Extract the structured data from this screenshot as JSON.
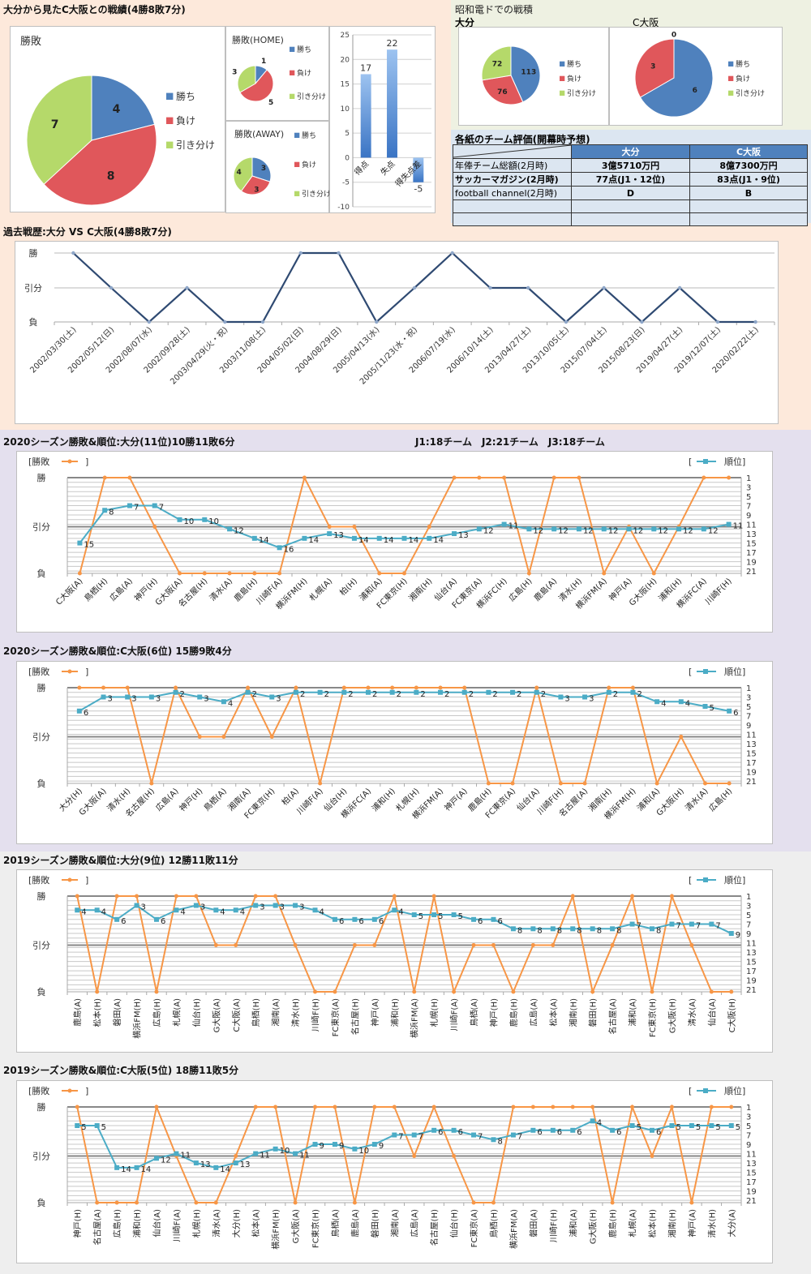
{
  "colors": {
    "win": "#4f81bd",
    "loss": "#e0575b",
    "draw": "#b5d96a",
    "result_line": "#f79646",
    "rank_line": "#4bacc6",
    "history_line": "#2f4a72",
    "bg_peach": "#fde9db",
    "bg_lavender": "#e4e0ee",
    "bg_gray": "#eeeeee",
    "bg_green": "#eef1e2"
  },
  "headtohead": {
    "title": "大分から見たC大阪との戦績(4勝8敗7分)",
    "legend": [
      "勝ち",
      "負け",
      "引き分け"
    ]
  },
  "showa": {
    "title": "昭和電ドでの戦積",
    "left_label": "大分",
    "right_label": "C大阪"
  },
  "evaluation": {
    "title": "各紙のチーム評価(開幕時予想)",
    "columns": [
      "",
      "大分",
      "C大阪"
    ],
    "rows": [
      [
        "年俸チーム総額(2月時)",
        "3億5710万円",
        "8億7300万円"
      ],
      [
        "サッカーマガジン(2月時)",
        "77点(J1・12位)",
        "83点(J1・9位)"
      ],
      [
        "football channel(2月時)",
        "D",
        "B"
      ],
      [
        "",
        "",
        ""
      ],
      [
        "",
        "",
        ""
      ]
    ]
  },
  "history": {
    "title": "過去戦歴:大分 VS C大阪(4勝8敗7分)"
  },
  "season2020_oita": {
    "title": "2020シーズン勝敗&順位:大分(11位)10勝11敗6分",
    "note": "J1:18チーム　J2:21チーム　J3:18チーム"
  },
  "season2020_cosaka": {
    "title": "2020シーズン勝敗&順位:C大阪(6位) 15勝9敗4分"
  },
  "season2019_oita": {
    "title": "2019シーズン勝敗&順位:大分(9位) 12勝11敗11分"
  },
  "season2019_cosaka": {
    "title": "2019シーズン勝敗&順位:C大阪(5位) 18勝11敗5分"
  },
  "chart_data": [
    {
      "id": "pie_total",
      "type": "pie",
      "title": "勝敗",
      "categories": [
        "勝ち",
        "負け",
        "引き分け"
      ],
      "values": [
        4,
        8,
        7
      ],
      "legend": "right"
    },
    {
      "id": "pie_home",
      "type": "pie",
      "title": "勝敗(HOME)",
      "categories": [
        "勝ち",
        "負け",
        "引き分け"
      ],
      "values": [
        1,
        5,
        3
      ],
      "legend": "right"
    },
    {
      "id": "pie_away",
      "type": "pie",
      "title": "勝敗(AWAY)",
      "categories": [
        "勝ち",
        "負け",
        "引き分け"
      ],
      "values": [
        3,
        3,
        4
      ],
      "legend": "right"
    },
    {
      "id": "bar_goals",
      "type": "bar",
      "title": "",
      "categories": [
        "得点",
        "失点",
        "得失点差"
      ],
      "values": [
        17,
        22,
        -5
      ],
      "ylim": [
        -10,
        25
      ],
      "yticks": [
        25,
        20,
        15,
        10,
        5,
        0,
        -5,
        -10
      ],
      "grid": true
    },
    {
      "id": "pie_showa_oita",
      "type": "pie",
      "title": "大分",
      "categories": [
        "勝ち",
        "負け",
        "引き分け"
      ],
      "values": [
        113,
        76,
        72
      ],
      "legend": "right"
    },
    {
      "id": "pie_showa_cosaka",
      "type": "pie",
      "title": "C大阪",
      "categories": [
        "勝ち",
        "負け",
        "引き分け"
      ],
      "values": [
        6,
        3,
        0
      ],
      "legend": "right"
    },
    {
      "id": "history",
      "type": "line",
      "title": "過去戦歴:大分 VS C大阪(4勝8敗7分)",
      "yticks": [
        "勝",
        "引分",
        "負"
      ],
      "categories": [
        "2002/03/30(土)",
        "2002/05/12(日)",
        "2002/08/07(水)",
        "2002/09/28(土)",
        "2003/04/29(火・祝)",
        "2003/11/08(土)",
        "2004/05/02(日)",
        "2004/08/29(日)",
        "2005/04/13(水)",
        "2005/11/23(水・祝)",
        "2006/07/19(水)",
        "2006/10/14(土)",
        "2013/04/27(土)",
        "2013/10/05(土)",
        "2015/07/04(土)",
        "2015/08/23(日)",
        "2019/04/27(土)",
        "2019/12/07(土)",
        "2020/02/22(土)"
      ],
      "results": [
        "W",
        "D",
        "L",
        "D",
        "L",
        "L",
        "W",
        "W",
        "L",
        "D",
        "W",
        "D",
        "D",
        "L",
        "D",
        "L",
        "D",
        "L",
        "L"
      ]
    },
    {
      "id": "s2020_oita",
      "type": "line",
      "title": "2020シーズン勝敗&順位:大分(11位)10勝11敗6分",
      "legend_left": "勝敗",
      "legend_right": "順位",
      "yticks_left": [
        "勝",
        "引分",
        "負"
      ],
      "yticks_right": [
        1,
        3,
        5,
        7,
        9,
        11,
        13,
        15,
        17,
        19,
        21
      ],
      "categories": [
        "C大阪(A)",
        "鳥栖(H)",
        "広島(A)",
        "神戸(H)",
        "G大阪(A)",
        "名古屋(H)",
        "清水(A)",
        "鹿島(H)",
        "川崎F(A)",
        "横浜FM(H)",
        "札幌(A)",
        "柏(H)",
        "浦和(A)",
        "FC東京(H)",
        "湘南(H)",
        "仙台(A)",
        "FC東京(A)",
        "横浜FC(H)",
        "広島(H)",
        "鹿島(A)",
        "清水(H)",
        "横浜FM(A)",
        "神戸(A)",
        "G大阪(H)",
        "浦和(H)",
        "横浜FC(A)",
        "川崎F(H)"
      ],
      "results": [
        "L",
        "W",
        "W",
        "D",
        "L",
        "L",
        "L",
        "L",
        "L",
        "W",
        "D",
        "D",
        "L",
        "L",
        "D",
        "W",
        "W",
        "W",
        "L",
        "W",
        "W",
        "L",
        "D",
        "L",
        "D",
        "W",
        "W"
      ],
      "ranks": [
        15,
        8,
        7,
        7,
        10,
        10,
        12,
        14,
        16,
        14,
        13,
        14,
        14,
        14,
        14,
        13,
        12,
        11,
        12,
        12,
        12,
        12,
        12,
        12,
        12,
        12,
        11
      ]
    },
    {
      "id": "s2020_cosaka",
      "type": "line",
      "title": "2020シーズン勝敗&順位:C大阪(6位) 15勝9敗4分",
      "legend_left": "勝敗",
      "legend_right": "順位",
      "yticks_left": [
        "勝",
        "引分",
        "負"
      ],
      "yticks_right": [
        1,
        3,
        5,
        7,
        9,
        11,
        13,
        15,
        17,
        19,
        21
      ],
      "categories": [
        "大分(H)",
        "G大阪(A)",
        "清水(H)",
        "名古屋(H)",
        "広島(A)",
        "神戸(H)",
        "鳥栖(A)",
        "湘南(A)",
        "FC東京(H)",
        "柏(A)",
        "川崎F(A)",
        "仙台(H)",
        "横浜FC(A)",
        "浦和(H)",
        "札幌(H)",
        "横浜FM(A)",
        "神戸(A)",
        "鹿島(H)",
        "FC東京(A)",
        "仙台(A)",
        "川崎F(H)",
        "名古屋(A)",
        "湘南(H)",
        "横浜FM(H)",
        "浦和(A)",
        "G大阪(H)",
        "清水(A)",
        "広島(H)"
      ],
      "results": [
        "W",
        "W",
        "W",
        "L",
        "W",
        "D",
        "D",
        "W",
        "D",
        "W",
        "L",
        "W",
        "W",
        "W",
        "W",
        "W",
        "W",
        "L",
        "L",
        "W",
        "L",
        "L",
        "W",
        "W",
        "L",
        "D",
        "L",
        "L"
      ],
      "ranks": [
        6,
        3,
        3,
        3,
        2,
        3,
        4,
        2,
        3,
        2,
        2,
        2,
        2,
        2,
        2,
        2,
        2,
        2,
        2,
        2,
        3,
        3,
        2,
        2,
        4,
        4,
        5,
        6
      ]
    },
    {
      "id": "s2019_oita",
      "type": "line",
      "title": "2019シーズン勝敗&順位:大分(9位) 12勝11敗11分",
      "legend_left": "勝敗",
      "legend_right": "順位",
      "yticks_left": [
        "勝",
        "引分",
        "負"
      ],
      "yticks_right": [
        1,
        3,
        5,
        7,
        9,
        11,
        13,
        15,
        17,
        19,
        21
      ],
      "categories": [
        "鹿島(A)",
        "松本(H)",
        "磐田(A)",
        "横浜FM(H)",
        "広島(H)",
        "札幌(A)",
        "仙台(H)",
        "G大阪(A)",
        "C大阪(A)",
        "鳥栖(H)",
        "湘南(A)",
        "清水(H)",
        "川崎F(H)",
        "FC東京(A)",
        "名古屋(H)",
        "神戸(A)",
        "浦和(H)",
        "横浜FM(A)",
        "札幌(H)",
        "川崎F(A)",
        "鳥栖(A)",
        "神戸(H)",
        "鹿島(H)",
        "広島(A)",
        "松本(A)",
        "湘南(H)",
        "磐田(H)",
        "名古屋(A)",
        "浦和(A)",
        "FC東京(H)",
        "G大阪(H)",
        "清水(A)",
        "仙台(A)",
        "C大阪(H)"
      ],
      "results": [
        "W",
        "L",
        "W",
        "W",
        "L",
        "W",
        "W",
        "D",
        "D",
        "W",
        "W",
        "D",
        "L",
        "L",
        "D",
        "D",
        "W",
        "L",
        "W",
        "L",
        "D",
        "D",
        "L",
        "D",
        "D",
        "W",
        "L",
        "D",
        "W",
        "L",
        "W",
        "D",
        "L",
        "L"
      ],
      "ranks": [
        4,
        4,
        6,
        3,
        6,
        4,
        3,
        4,
        4,
        3,
        3,
        3,
        4,
        6,
        6,
        6,
        4,
        5,
        5,
        5,
        6,
        6,
        8,
        8,
        8,
        8,
        8,
        8,
        7,
        8,
        7,
        7,
        7,
        9
      ]
    },
    {
      "id": "s2019_cosaka",
      "type": "line",
      "title": "2019シーズン勝敗&順位:C大阪(5位) 18勝11敗5分",
      "legend_left": "勝敗",
      "legend_right": "順位",
      "yticks_left": [
        "勝",
        "引分",
        "負"
      ],
      "yticks_right": [
        1,
        3,
        5,
        7,
        9,
        11,
        13,
        15,
        17,
        19,
        21
      ],
      "categories": [
        "神戸(H)",
        "名古屋(A)",
        "広島(H)",
        "浦和(H)",
        "仙台(A)",
        "川崎F(A)",
        "札幌(H)",
        "清水(A)",
        "大分(H)",
        "松本(A)",
        "横浜FM(H)",
        "G大阪(A)",
        "FC東京(H)",
        "鳥栖(A)",
        "鹿島(A)",
        "磐田(H)",
        "湘南(A)",
        "広島(A)",
        "名古屋(H)",
        "仙台(H)",
        "FC東京(A)",
        "鳥栖(H)",
        "横浜FM(A)",
        "磐田(A)",
        "川崎F(H)",
        "浦和(A)",
        "G大阪(H)",
        "鹿島(H)",
        "札幌(A)",
        "松本(H)",
        "湘南(H)",
        "神戸(A)",
        "清水(H)",
        "大分(A)"
      ],
      "results": [
        "W",
        "L",
        "L",
        "L",
        "W",
        "D",
        "L",
        "L",
        "D",
        "W",
        "W",
        "L",
        "W",
        "W",
        "L",
        "W",
        "W",
        "D",
        "W",
        "D",
        "L",
        "L",
        "W",
        "W",
        "W",
        "W",
        "W",
        "L",
        "W",
        "D",
        "W",
        "L",
        "W",
        "W"
      ],
      "ranks": [
        5,
        5,
        14,
        14,
        12,
        11,
        13,
        14,
        13,
        11,
        10,
        11,
        9,
        9,
        10,
        9,
        7,
        7,
        6,
        6,
        7,
        8,
        7,
        6,
        6,
        6,
        4,
        6,
        5,
        6,
        5,
        5,
        5,
        5
      ]
    }
  ]
}
